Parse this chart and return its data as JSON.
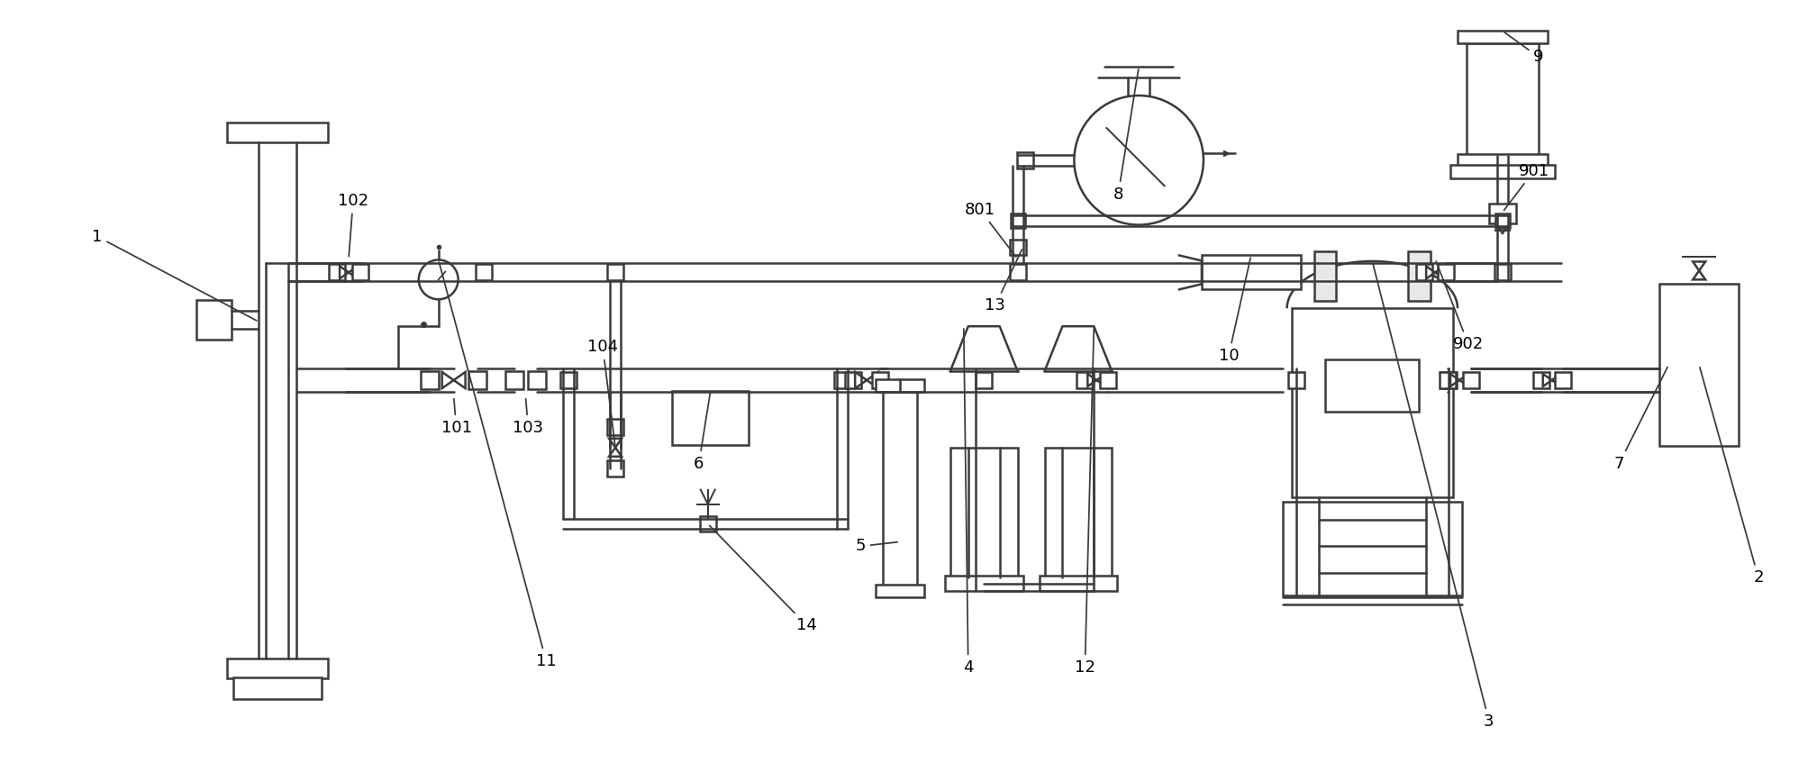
{
  "bg_color": "#ffffff",
  "lc": "#3a3a3a",
  "lw": 1.8,
  "fig_w": 20.17,
  "fig_h": 8.57
}
